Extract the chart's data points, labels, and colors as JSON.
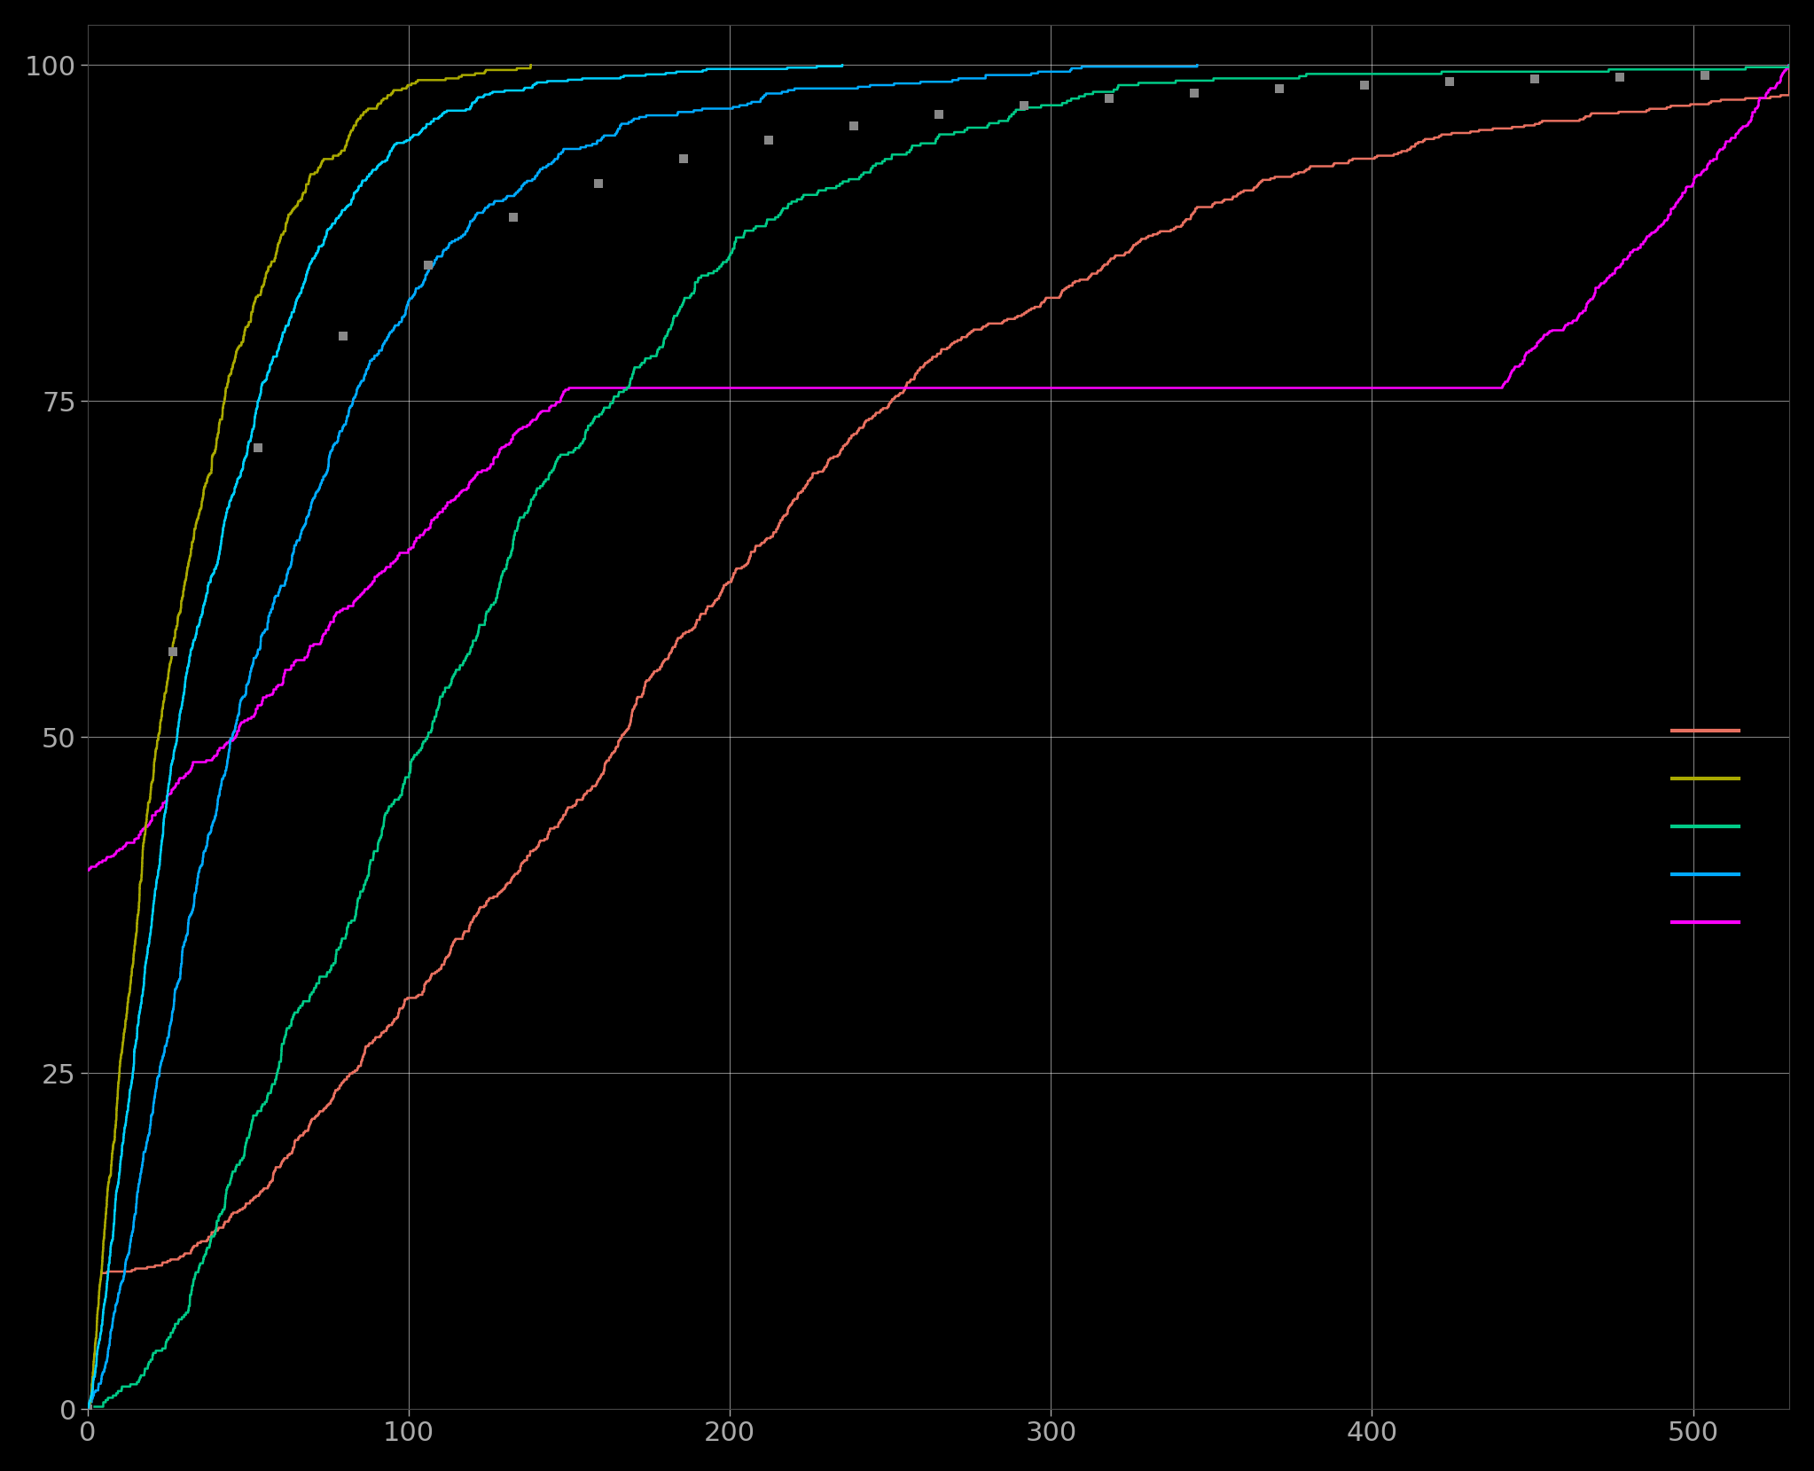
{
  "background_color": "#000000",
  "facecolor": "#000000",
  "grid_color": "#888888",
  "text_color": "#aaaaaa",
  "tick_color": "#aaaaaa",
  "xlim": [
    0,
    530
  ],
  "ylim": [
    0,
    103
  ],
  "xticks": [
    0,
    100,
    200,
    300,
    400,
    500
  ],
  "yticks": [
    0,
    25,
    50,
    75,
    100
  ],
  "line_colors": {
    "overall_cyan": "#00d0ff",
    "overall_dashed": "#888888",
    "red": "#e87060",
    "yellow_green": "#aaaa00",
    "green": "#00cc88",
    "cyan_blue": "#00aaff",
    "magenta": "#ff00ff"
  },
  "legend_labels": [
    "",
    "",
    "",
    "",
    ""
  ],
  "legend_colors": [
    "#e87060",
    "#aaaa00",
    "#00cc88",
    "#00aaff",
    "#ff00ff"
  ],
  "figsize": [
    20.46,
    16.59
  ],
  "dpi": 100
}
